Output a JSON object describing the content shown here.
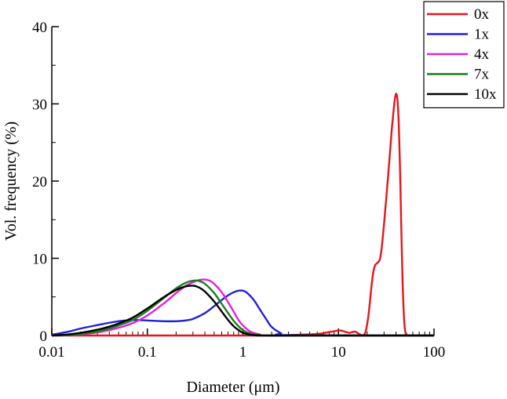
{
  "chart_data": {
    "type": "line",
    "title": "",
    "xlabel": "Diameter (μm)",
    "ylabel": "Vol. frequency (%)",
    "xscale": "log",
    "xlim": [
      0.01,
      100
    ],
    "ylim": [
      0,
      40
    ],
    "xticks": [
      0.01,
      0.1,
      1,
      10,
      100
    ],
    "xtick_labels": [
      "0.01",
      "0.1",
      "1",
      "10",
      "100"
    ],
    "yticks": [
      0,
      10,
      20,
      30,
      40
    ],
    "ytick_labels": [
      "0",
      "10",
      "20",
      "30",
      "40"
    ],
    "grid": false,
    "legend": "top-right",
    "series": [
      {
        "name": "0x",
        "color": "#e8141c",
        "x": [
          0.01,
          2,
          3,
          4,
          5,
          6,
          7,
          8,
          9,
          10,
          11,
          12,
          13,
          14,
          15,
          16,
          17,
          18,
          19,
          20,
          21,
          22,
          23,
          24,
          25,
          26,
          27,
          28,
          29,
          30,
          31,
          32,
          33,
          34,
          35,
          36,
          37,
          38,
          39,
          40,
          41,
          42,
          43,
          44,
          45,
          46,
          47,
          48,
          49,
          50,
          52,
          55,
          60,
          100
        ],
        "y": [
          0,
          0,
          0.05,
          0.1,
          0.15,
          0.2,
          0.3,
          0.45,
          0.55,
          0.65,
          0.6,
          0.45,
          0.35,
          0.45,
          0.5,
          0.3,
          0.1,
          0.05,
          0.3,
          1.5,
          3.5,
          6.0,
          8.0,
          9.0,
          9.3,
          9.5,
          9.8,
          10.8,
          12.5,
          14.5,
          16.5,
          18.5,
          20.5,
          22.5,
          24.5,
          26.5,
          28.0,
          29.5,
          30.7,
          31.3,
          31.0,
          29.5,
          26.5,
          22.0,
          16.5,
          11.0,
          6.5,
          3.5,
          1.5,
          0.5,
          0.1,
          0,
          0,
          0
        ]
      },
      {
        "name": "1x",
        "color": "#1e22d6",
        "x": [
          0.01,
          0.015,
          0.02,
          0.03,
          0.04,
          0.05,
          0.06,
          0.07,
          0.08,
          0.1,
          0.12,
          0.15,
          0.2,
          0.25,
          0.3,
          0.4,
          0.5,
          0.6,
          0.7,
          0.8,
          0.9,
          1.0,
          1.1,
          1.3,
          1.5,
          1.8,
          2.0,
          2.5,
          3.0,
          100
        ],
        "y": [
          0.1,
          0.5,
          0.9,
          1.35,
          1.65,
          1.85,
          1.95,
          2.0,
          2.0,
          1.95,
          1.9,
          1.85,
          1.85,
          1.95,
          2.15,
          2.9,
          3.8,
          4.6,
          5.2,
          5.6,
          5.8,
          5.8,
          5.55,
          4.6,
          3.4,
          1.9,
          1.1,
          0.3,
          0.05,
          0
        ]
      },
      {
        "name": "4x",
        "color": "#e61ee6",
        "x": [
          0.01,
          0.015,
          0.02,
          0.03,
          0.04,
          0.05,
          0.07,
          0.1,
          0.15,
          0.2,
          0.25,
          0.3,
          0.35,
          0.4,
          0.45,
          0.5,
          0.6,
          0.7,
          0.8,
          0.9,
          1.0,
          1.2,
          1.5,
          2.0,
          100
        ],
        "y": [
          0,
          0.05,
          0.15,
          0.4,
          0.7,
          1.0,
          1.6,
          2.6,
          4.2,
          5.5,
          6.4,
          6.9,
          7.2,
          7.25,
          7.1,
          6.7,
          5.6,
          4.3,
          3.1,
          2.0,
          1.3,
          0.5,
          0.15,
          0,
          0
        ]
      },
      {
        "name": "7x",
        "color": "#1a7f1a",
        "x": [
          0.01,
          0.015,
          0.02,
          0.03,
          0.04,
          0.05,
          0.07,
          0.1,
          0.15,
          0.2,
          0.25,
          0.3,
          0.35,
          0.4,
          0.5,
          0.6,
          0.7,
          0.8,
          0.9,
          1.0,
          1.2,
          1.5,
          2.0,
          100
        ],
        "y": [
          0,
          0.05,
          0.2,
          0.5,
          0.9,
          1.3,
          2.0,
          3.2,
          4.9,
          6.1,
          6.8,
          7.1,
          7.05,
          6.7,
          5.5,
          4.1,
          2.9,
          1.9,
          1.2,
          0.7,
          0.25,
          0.05,
          0,
          0
        ]
      },
      {
        "name": "10x",
        "color": "#000000",
        "x": [
          0.01,
          0.015,
          0.02,
          0.03,
          0.04,
          0.05,
          0.07,
          0.1,
          0.15,
          0.2,
          0.25,
          0.3,
          0.35,
          0.4,
          0.5,
          0.6,
          0.7,
          0.8,
          0.9,
          1.0,
          1.2,
          1.5,
          2.0,
          100
        ],
        "y": [
          0,
          0.15,
          0.35,
          0.75,
          1.15,
          1.55,
          2.3,
          3.5,
          5.0,
          5.9,
          6.35,
          6.45,
          6.2,
          5.7,
          4.4,
          3.1,
          2.0,
          1.2,
          0.7,
          0.35,
          0.1,
          0.02,
          0,
          0
        ]
      }
    ]
  }
}
